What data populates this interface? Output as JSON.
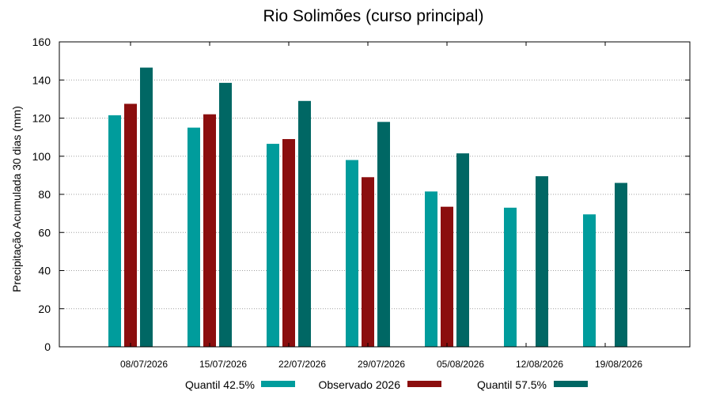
{
  "chart_data": {
    "type": "bar",
    "title": "Rio Solimões (curso principal)",
    "xlabel": "",
    "ylabel": "Precipitação Acumulada 30 dias (mm)",
    "ylim": [
      0,
      160
    ],
    "yticks": [
      0,
      20,
      40,
      60,
      80,
      100,
      120,
      140,
      160
    ],
    "grid": true,
    "legend_position": "bottom",
    "categories": [
      "08/07/2026",
      "15/07/2026",
      "22/07/2026",
      "29/07/2026",
      "05/08/2026",
      "12/08/2026",
      "19/08/2026"
    ],
    "series": [
      {
        "name": "Quantil 42.5%",
        "color": "#009c9c",
        "values": [
          121.5,
          115,
          106.5,
          98,
          81.5,
          73,
          69.5
        ]
      },
      {
        "name": "Observado 2026",
        "color": "#8b0e0e",
        "values": [
          127.5,
          122,
          109,
          89,
          73.5,
          null,
          null
        ]
      },
      {
        "name": "Quantil 57.5%",
        "color": "#006764",
        "values": [
          146.5,
          138.5,
          129,
          118,
          101.5,
          89.5,
          86
        ]
      }
    ]
  }
}
